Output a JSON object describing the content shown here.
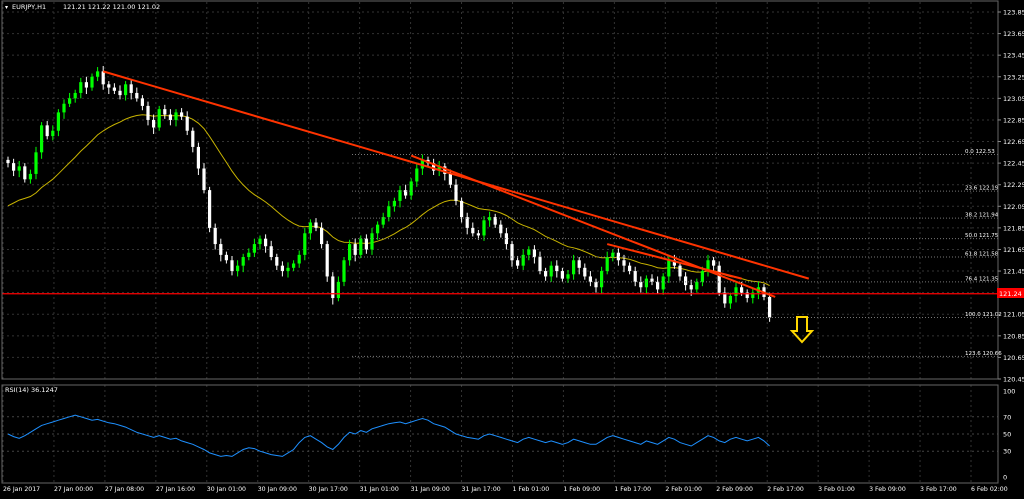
{
  "header": {
    "symbol_timeframe": "EURJPY,H1",
    "ohlc": "121.21 121.22 121.00 121.02"
  },
  "rsi_header": "RSI(14) 36.1247",
  "price_label": "121.24",
  "colors": {
    "background": "#000000",
    "bull_candle": "#00ff00",
    "bear_candle": "#ffffff",
    "moving_average": "#c8b400",
    "trendline": "#ff3300",
    "horizontal_line": "#ff0000",
    "rsi_line": "#1e90ff",
    "arrow": "#ffd700",
    "axis_text": "#ffffff"
  },
  "chart_data": [
    {
      "type": "candlestick",
      "x_axis_labels": [
        "26 Jan 2017",
        "27 Jan 00:00",
        "27 Jan 08:00",
        "27 Jan 16:00",
        "30 Jan 01:00",
        "30 Jan 09:00",
        "30 Jan 17:00",
        "31 Jan 01:00",
        "31 Jan 09:00",
        "31 Jan 17:00",
        "1 Feb 01:00",
        "1 Feb 09:00",
        "1 Feb 17:00",
        "2 Feb 01:00",
        "2 Feb 09:00",
        "2 Feb 17:00",
        "3 Feb 01:00",
        "3 Feb 09:00",
        "3 Feb 17:00",
        "6 Feb 02:00"
      ],
      "ylim": [
        120.45,
        123.85
      ],
      "y_ticks": [
        "123.85",
        "123.65",
        "123.45",
        "123.25",
        "123.05",
        "122.85",
        "122.65",
        "122.45",
        "122.25",
        "122.05",
        "121.85",
        "121.65",
        "121.45",
        "121.25",
        "121.05",
        "120.85",
        "120.65",
        "120.45"
      ],
      "close": [
        122.45,
        122.38,
        122.42,
        122.3,
        122.35,
        122.55,
        122.8,
        122.7,
        122.75,
        122.92,
        123.0,
        123.05,
        123.1,
        123.2,
        123.15,
        123.25,
        123.3,
        123.18,
        123.15,
        123.12,
        123.08,
        123.18,
        123.1,
        123.05,
        122.98,
        122.85,
        122.78,
        122.95,
        122.9,
        122.85,
        122.92,
        122.88,
        122.75,
        122.6,
        122.4,
        122.2,
        121.85,
        121.7,
        121.6,
        121.55,
        121.45,
        121.5,
        121.58,
        121.62,
        121.7,
        121.75,
        121.68,
        121.58,
        121.5,
        121.45,
        121.48,
        121.52,
        121.6,
        121.8,
        121.9,
        121.85,
        121.7,
        121.4,
        121.2,
        121.35,
        121.55,
        121.7,
        121.6,
        121.75,
        121.65,
        121.8,
        121.88,
        121.95,
        122.05,
        122.1,
        122.2,
        122.15,
        122.28,
        122.4,
        122.48,
        122.45,
        122.38,
        122.42,
        122.35,
        122.25,
        122.1,
        121.95,
        121.85,
        121.8,
        121.78,
        121.92,
        121.95,
        121.88,
        121.8,
        121.7,
        121.55,
        121.5,
        121.6,
        121.65,
        121.58,
        121.45,
        121.4,
        121.5,
        121.45,
        121.38,
        121.42,
        121.55,
        121.48,
        121.4,
        121.35,
        121.3,
        121.45,
        121.58,
        121.62,
        121.55,
        121.5,
        121.45,
        121.35,
        121.3,
        121.38,
        121.35,
        121.28,
        121.4,
        121.55,
        121.5,
        121.4,
        121.32,
        121.28,
        121.35,
        121.45,
        121.55,
        121.5,
        121.25,
        121.15,
        121.22,
        121.3,
        121.25,
        121.2,
        121.25,
        121.3,
        121.21,
        121.02
      ],
      "moving_average_start": 122.02,
      "annotations": {
        "fibonacci_levels": [
          {
            "label": "0.0 122.53",
            "value": 122.53
          },
          {
            "label": "23.6 122.19",
            "value": 122.19
          },
          {
            "label": "38.2 121.94",
            "value": 121.94
          },
          {
            "label": "50.0 121.75",
            "value": 121.75
          },
          {
            "label": "61.8 121.58",
            "value": 121.58
          },
          {
            "label": "76.4 121.35",
            "value": 121.35
          },
          {
            "label": "100.0 121.02",
            "value": 121.02
          },
          {
            "label": "123.6 120.66",
            "value": 120.66
          }
        ],
        "trendlines": [
          {
            "x1": 17,
            "y1": 123.3,
            "x2": 143,
            "y2": 121.38
          },
          {
            "x1": 72,
            "y1": 122.52,
            "x2": 137,
            "y2": 121.21
          },
          {
            "x1": 107,
            "y1": 121.7,
            "x2": 131,
            "y2": 121.38
          }
        ],
        "horizontal_line": 121.24
      }
    },
    {
      "type": "line",
      "title": "RSI(14) 36.1247",
      "ylim": [
        0,
        100
      ],
      "y_ticks": [
        "100",
        "70",
        "50",
        "30",
        "0"
      ],
      "values": [
        50,
        47,
        45,
        48,
        52,
        56,
        60,
        62,
        64,
        66,
        68,
        70,
        72,
        70,
        68,
        66,
        67,
        65,
        63,
        62,
        60,
        58,
        55,
        52,
        50,
        48,
        46,
        48,
        46,
        44,
        45,
        42,
        40,
        38,
        35,
        32,
        28,
        26,
        24,
        25,
        24,
        28,
        32,
        34,
        33,
        30,
        28,
        26,
        25,
        24,
        28,
        32,
        40,
        46,
        48,
        44,
        40,
        35,
        32,
        38,
        46,
        52,
        50,
        54,
        52,
        56,
        58,
        60,
        62,
        63,
        64,
        62,
        64,
        66,
        68,
        66,
        62,
        60,
        58,
        54,
        50,
        48,
        46,
        45,
        44,
        48,
        50,
        48,
        46,
        44,
        42,
        40,
        44,
        46,
        44,
        42,
        40,
        42,
        40,
        38,
        40,
        44,
        42,
        40,
        38,
        38,
        42,
        46,
        48,
        46,
        44,
        42,
        40,
        38,
        42,
        40,
        38,
        42,
        46,
        44,
        40,
        38,
        36,
        40,
        44,
        48,
        46,
        42,
        40,
        44,
        46,
        44,
        42,
        44,
        46,
        42,
        36
      ]
    }
  ]
}
